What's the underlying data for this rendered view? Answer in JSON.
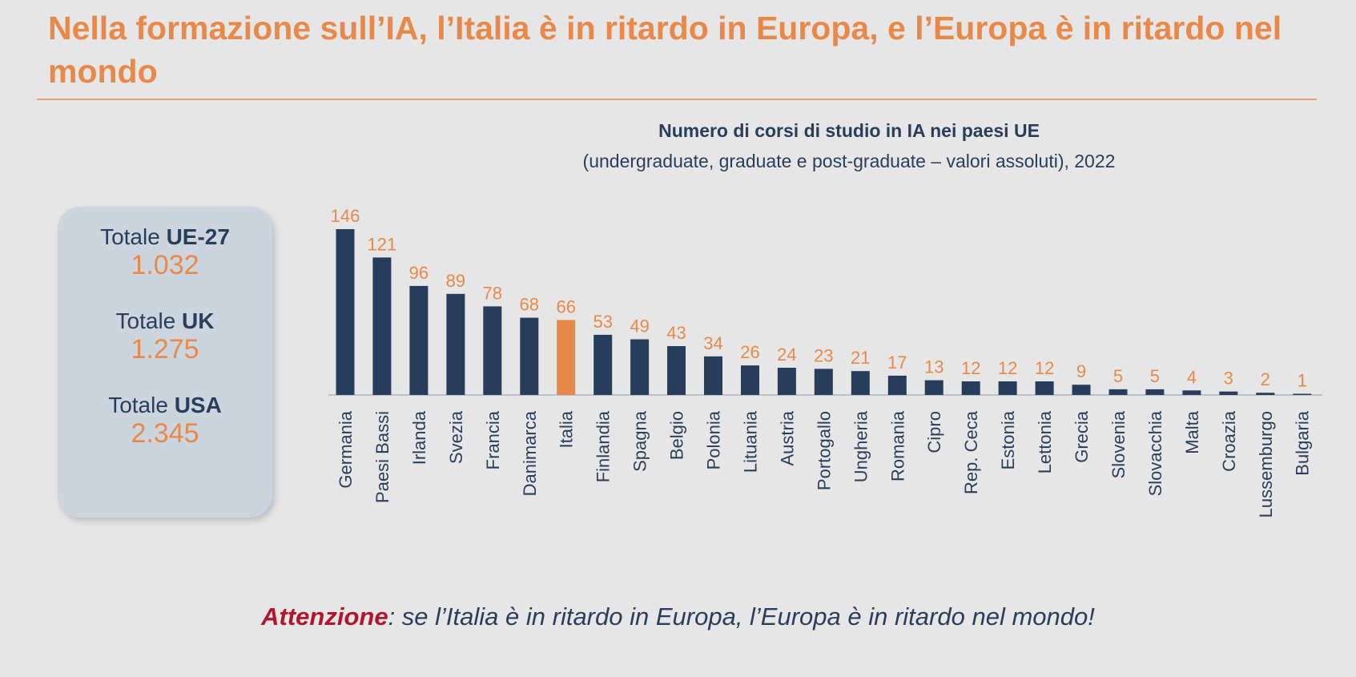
{
  "title": "Nella formazione sull’IA, l’Italia è in ritardo in Europa, e l’Europa è in ritardo nel mondo",
  "totals": [
    {
      "prefix": "Totale ",
      "bold": "UE-27",
      "value": "1.032"
    },
    {
      "prefix": "Totale ",
      "bold": "UK",
      "value": "1.275"
    },
    {
      "prefix": "Totale ",
      "bold": "USA",
      "value": "2.345"
    }
  ],
  "note": {
    "highlight": "Attenzione",
    "text": ": se l’Italia è in ritardo in Europa, l’Europa è in ritardo nel mondo!"
  },
  "colors": {
    "bar": "#263d5c",
    "highlight_bar": "#e8894a",
    "label": "#e8894a",
    "axis": "#b9c2cb"
  },
  "chart_data": {
    "type": "bar",
    "title": "Numero di corsi di studio in IA nei paesi UE",
    "subtitle": "(undergraduate, graduate e post-graduate – valori assoluti), 2022",
    "xlabel": "",
    "ylabel": "",
    "ylim": [
      0,
      146
    ],
    "highlight": "Italia",
    "categories": [
      "Germania",
      "Paesi Bassi",
      "Irlanda",
      "Svezia",
      "Francia",
      "Danimarca",
      "Italia",
      "Finlandia",
      "Spagna",
      "Belgio",
      "Polonia",
      "Lituania",
      "Austria",
      "Portogallo",
      "Ungheria",
      "Romania",
      "Cipro",
      "Rep. Ceca",
      "Estonia",
      "Lettonia",
      "Grecia",
      "Slovenia",
      "Slovacchia",
      "Malta",
      "Croazia",
      "Lussemburgo",
      "Bulgaria"
    ],
    "values": [
      146,
      121,
      96,
      89,
      78,
      68,
      66,
      53,
      49,
      43,
      34,
      26,
      24,
      23,
      21,
      17,
      13,
      12,
      12,
      12,
      9,
      5,
      5,
      4,
      3,
      2,
      1
    ]
  }
}
